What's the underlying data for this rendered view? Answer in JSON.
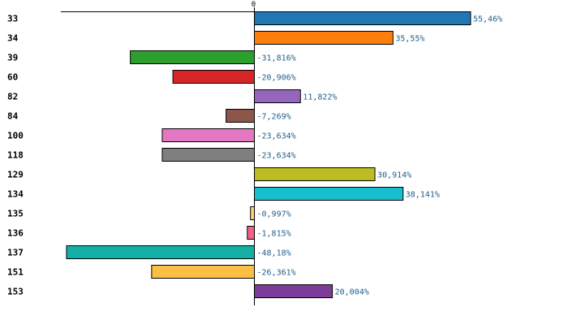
{
  "chart_data": {
    "type": "bar",
    "orientation": "horizontal",
    "categories": [
      "33",
      "34",
      "39",
      "60",
      "82",
      "84",
      "100",
      "118",
      "129",
      "134",
      "135",
      "136",
      "137",
      "151",
      "153"
    ],
    "values": [
      55.46,
      35.55,
      -31.816,
      -20.906,
      11.822,
      -7.269,
      -23.634,
      -23.634,
      30.914,
      38.141,
      -0.997,
      -1.815,
      -48.18,
      -26.361,
      20.004
    ],
    "value_labels": [
      "55,46%",
      "35,55%",
      "-31,816%",
      "-20,906%",
      "11,822%",
      "-7,269%",
      "-23,634%",
      "-23,634%",
      "30,914%",
      "38,141%",
      "-0,997%",
      "-1,815%",
      "-48,18%",
      "-26,361%",
      "20,004%"
    ],
    "colors": [
      "#1f77b4",
      "#ff7f0e",
      "#2ca02c",
      "#d62728",
      "#9467bd",
      "#8c564b",
      "#e377c2",
      "#7f7f7f",
      "#bcbd22",
      "#17becf",
      "#ffd280",
      "#f2608a",
      "#14b0a6",
      "#fbbf45",
      "#7d3c98"
    ],
    "highlight_category": "100",
    "highlight_color": "#ff0000",
    "zero_tick_label": "0",
    "xlim": [
      -48.18,
      55.46
    ],
    "grid": false,
    "title": "",
    "xlabel": "",
    "ylabel": ""
  }
}
